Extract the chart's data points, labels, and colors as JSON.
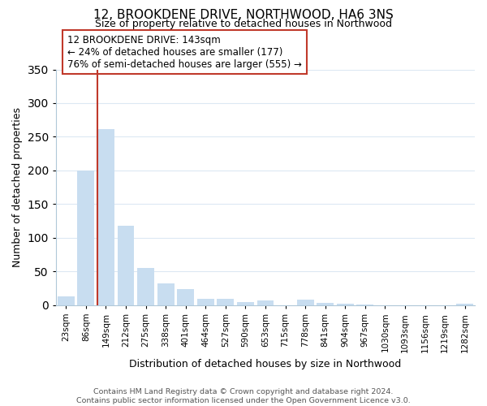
{
  "title": "12, BROOKDENE DRIVE, NORTHWOOD, HA6 3NS",
  "subtitle": "Size of property relative to detached houses in Northwood",
  "xlabel": "Distribution of detached houses by size in Northwood",
  "ylabel": "Number of detached properties",
  "categories": [
    "23sqm",
    "86sqm",
    "149sqm",
    "212sqm",
    "275sqm",
    "338sqm",
    "401sqm",
    "464sqm",
    "527sqm",
    "590sqm",
    "653sqm",
    "715sqm",
    "778sqm",
    "841sqm",
    "904sqm",
    "967sqm",
    "1030sqm",
    "1093sqm",
    "1156sqm",
    "1219sqm",
    "1282sqm"
  ],
  "values": [
    13,
    200,
    262,
    118,
    55,
    33,
    24,
    10,
    9,
    5,
    7,
    0,
    8,
    3,
    2,
    1,
    0,
    0,
    0,
    0,
    2
  ],
  "bar_color": "#c8ddf0",
  "highlight_bar_index": 2,
  "red_line_index": 2,
  "ylim": [
    0,
    350
  ],
  "yticks": [
    0,
    50,
    100,
    150,
    200,
    250,
    300,
    350
  ],
  "annotation_title": "12 BROOKDENE DRIVE: 143sqm",
  "annotation_line1": "← 24% of detached houses are smaller (177)",
  "annotation_line2": "76% of semi-detached houses are larger (555) →",
  "annotation_box_color": "#ffffff",
  "annotation_box_edgecolor": "#c0392b",
  "red_line_color": "#c0392b",
  "footer_line1": "Contains HM Land Registry data © Crown copyright and database right 2024.",
  "footer_line2": "Contains public sector information licensed under the Open Government Licence v3.0.",
  "background_color": "#ffffff",
  "grid_color": "#dce8f3",
  "title_fontsize": 11,
  "subtitle_fontsize": 9,
  "ylabel_fontsize": 9,
  "xlabel_fontsize": 9,
  "tick_fontsize": 7.5,
  "annotation_fontsize": 8.5,
  "footer_fontsize": 6.8
}
